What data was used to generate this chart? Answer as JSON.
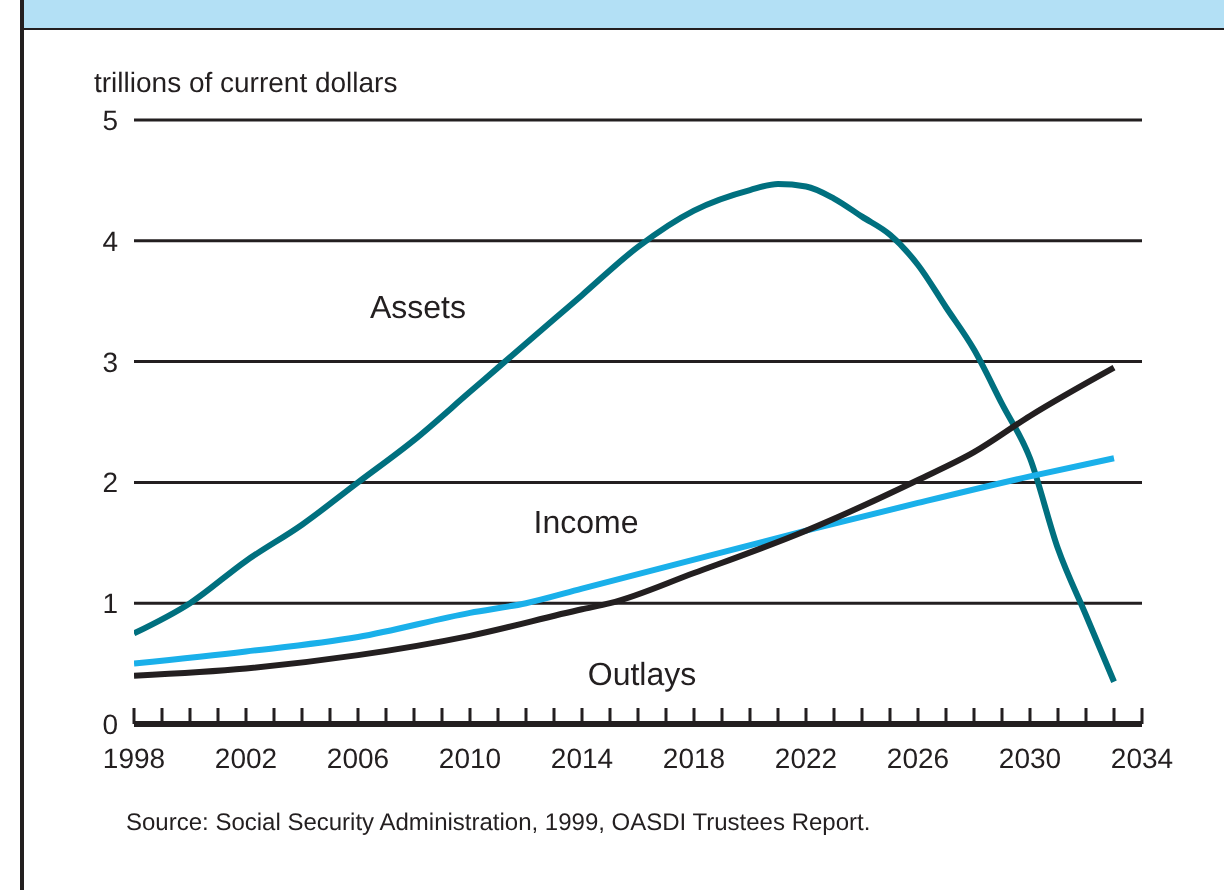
{
  "chart_data": {
    "type": "line",
    "ylabel": "trillions of current dollars",
    "annotations": [
      "Source: Social Security Administration, 1999, OASDI Trustees Report."
    ],
    "xlim": [
      1998,
      2034
    ],
    "xticks": [
      1998,
      {
        "value": 1999,
        "label": null
      },
      {
        "value": 2000,
        "label": null
      },
      {
        "value": 2001,
        "label": null
      },
      2002,
      {
        "value": 2003,
        "label": null
      },
      {
        "value": 2004,
        "label": null
      },
      {
        "value": 2005,
        "label": null
      },
      2006,
      {
        "value": 2007,
        "label": null
      },
      {
        "value": 2008,
        "label": null
      },
      {
        "value": 2009,
        "label": null
      },
      2010,
      {
        "value": 2011,
        "label": null
      },
      {
        "value": 2012,
        "label": null
      },
      {
        "value": 2013,
        "label": null
      },
      2014,
      {
        "value": 2015,
        "label": null
      },
      {
        "value": 2016,
        "label": null
      },
      {
        "value": 2017,
        "label": null
      },
      2018,
      {
        "value": 2019,
        "label": null
      },
      {
        "value": 2020,
        "label": null
      },
      {
        "value": 2021,
        "label": null
      },
      2022,
      {
        "value": 2023,
        "label": null
      },
      {
        "value": 2024,
        "label": null
      },
      {
        "value": 2025,
        "label": null
      },
      2026,
      {
        "value": 2027,
        "label": null
      },
      {
        "value": 2028,
        "label": null
      },
      {
        "value": 2029,
        "label": null
      },
      2030,
      {
        "value": 2031,
        "label": null
      },
      {
        "value": 2032,
        "label": null
      },
      {
        "value": 2033,
        "label": null
      },
      2034
    ],
    "ylim": [
      0,
      5
    ],
    "yticks": [
      0,
      1,
      2,
      3,
      4,
      5
    ],
    "grid": "y",
    "legend": false,
    "marker": "none",
    "line_style": "solid",
    "series": [
      {
        "name": "Assets",
        "color": "#00707f",
        "x": [
          1998,
          2000,
          2002,
          2004,
          2006,
          2008,
          2010,
          2011,
          2013,
          2014,
          2016,
          2018,
          2020,
          2021,
          2022,
          2023,
          2024,
          2025,
          2026,
          2027,
          2028,
          2029,
          2030,
          2031,
          2032,
          2033
        ],
        "values": [
          0.75,
          1.0,
          1.35,
          1.65,
          2.0,
          2.35,
          2.75,
          2.95,
          3.35,
          3.55,
          3.95,
          4.25,
          4.42,
          4.47,
          4.45,
          4.35,
          4.2,
          4.05,
          3.8,
          3.45,
          3.1,
          2.65,
          2.2,
          1.45,
          0.9,
          0.35
        ]
      },
      {
        "name": "Income",
        "color": "#1ab0ea",
        "x": [
          1998,
          2002,
          2006,
          2010,
          2012,
          2014,
          2018,
          2022,
          2026,
          2030,
          2033
        ],
        "values": [
          0.5,
          0.6,
          0.72,
          0.92,
          1.0,
          1.12,
          1.36,
          1.6,
          1.83,
          2.05,
          2.2
        ]
      },
      {
        "name": "Outlays",
        "color": "#231f20",
        "x": [
          1998,
          2002,
          2006,
          2010,
          2014,
          2015,
          2018,
          2022,
          2026,
          2028,
          2030,
          2033
        ],
        "values": [
          0.4,
          0.46,
          0.57,
          0.73,
          0.95,
          1.0,
          1.25,
          1.6,
          2.02,
          2.25,
          2.55,
          2.95
        ]
      }
    ]
  }
}
